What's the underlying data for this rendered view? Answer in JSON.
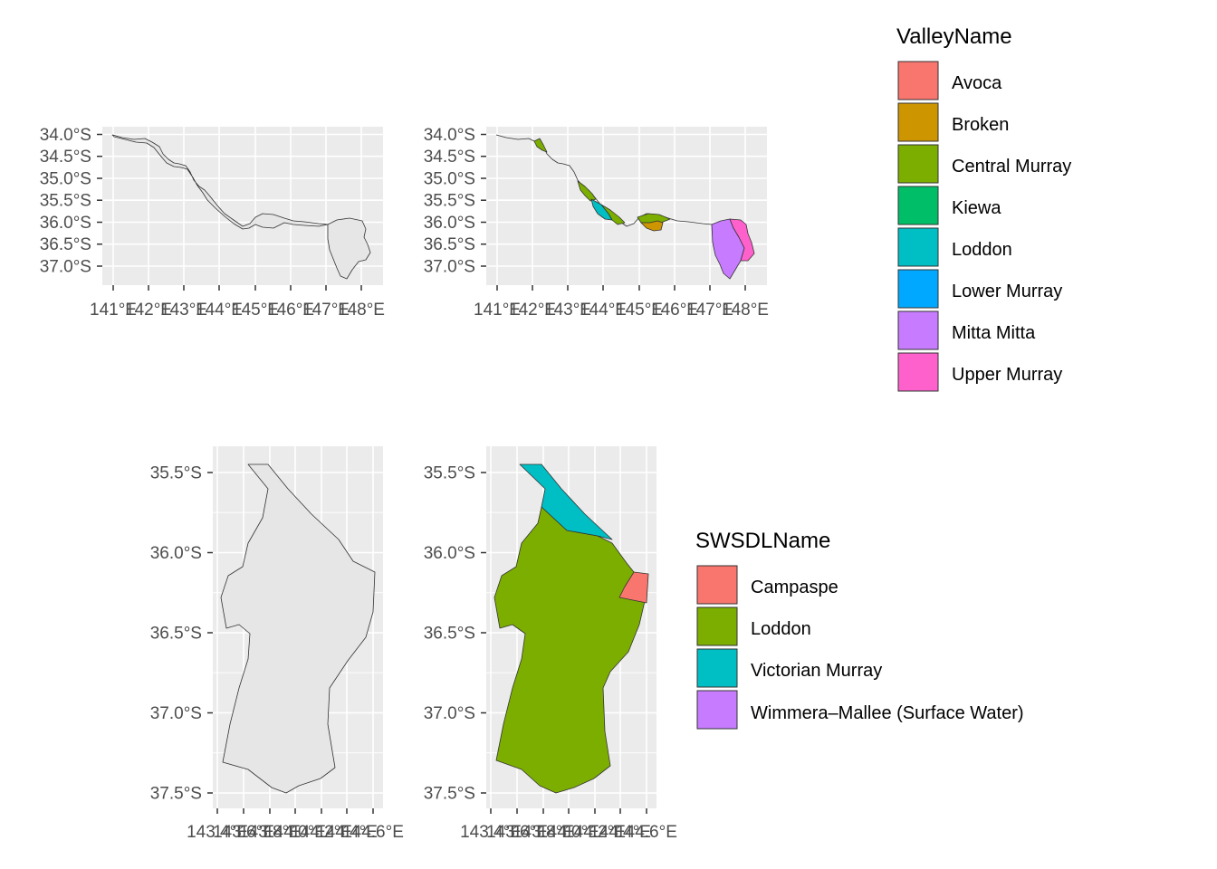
{
  "chart_data": [
    {
      "type": "map",
      "id": "valley-outline",
      "x_ticks": [
        "141°E",
        "142°E",
        "143°E",
        "144°E",
        "145°E",
        "146°E",
        "147°E",
        "148°E"
      ],
      "y_ticks": [
        "34.0°S",
        "34.5°S",
        "35.0°S",
        "35.5°S",
        "36.0°S",
        "36.5°S",
        "37.0°S"
      ],
      "xlim": [
        140.9,
        148.45
      ],
      "ylim": [
        -37.4,
        -33.95
      ],
      "fill": "#e6e6e6"
    },
    {
      "type": "map",
      "id": "valley-filled",
      "x_ticks": [
        "141°E",
        "142°E",
        "143°E",
        "144°E",
        "145°E",
        "146°E",
        "147°E",
        "148°E"
      ],
      "y_ticks": [
        "34.0°S",
        "34.5°S",
        "35.0°S",
        "35.5°S",
        "36.0°S",
        "36.5°S",
        "37.0°S"
      ],
      "xlim": [
        140.9,
        148.45
      ],
      "ylim": [
        -37.4,
        -33.95
      ],
      "legend": {
        "title": "ValleyName",
        "entries": [
          {
            "label": "Avoca",
            "color": "#F8766D"
          },
          {
            "label": "Broken",
            "color": "#CD9600"
          },
          {
            "label": "Central Murray",
            "color": "#7CAE00"
          },
          {
            "label": "Kiewa",
            "color": "#00BE67"
          },
          {
            "label": "Loddon",
            "color": "#00BFC4"
          },
          {
            "label": "Lower Murray",
            "color": "#00A9FF"
          },
          {
            "label": "Mitta Mitta",
            "color": "#C77CFF"
          },
          {
            "label": "Upper Murray",
            "color": "#FF61CC"
          }
        ]
      }
    },
    {
      "type": "map",
      "id": "swsdl-outline",
      "x_ticks": [
        "143.4°E",
        "143.6°E",
        "143.8°E",
        "144.0°E",
        "144.2°E",
        "144.4°E",
        "144.6°E"
      ],
      "y_ticks": [
        "35.5°S",
        "36.0°S",
        "36.5°S",
        "37.0°S",
        "37.5°S"
      ],
      "xlim": [
        143.37,
        144.62
      ],
      "ylim": [
        -37.58,
        -35.33
      ],
      "fill": "#e6e6e6"
    },
    {
      "type": "map",
      "id": "swsdl-filled",
      "x_ticks": [
        "143.4°E",
        "143.6°E",
        "143.8°E",
        "144.0°E",
        "144.2°E",
        "144.4°E",
        "144.6°E"
      ],
      "y_ticks": [
        "35.5°S",
        "36.0°S",
        "36.5°S",
        "37.0°S",
        "37.5°S"
      ],
      "xlim": [
        143.37,
        144.62
      ],
      "ylim": [
        -37.58,
        -35.33
      ],
      "legend": {
        "title": "SWSDLName",
        "entries": [
          {
            "label": "Campaspe",
            "color": "#F8766D"
          },
          {
            "label": "Loddon",
            "color": "#7CAE00"
          },
          {
            "label": "Victorian Murray",
            "color": "#00BFC4"
          },
          {
            "label": "Wimmera–Mallee (Surface Water)",
            "color": "#C77CFF"
          }
        ]
      }
    }
  ]
}
